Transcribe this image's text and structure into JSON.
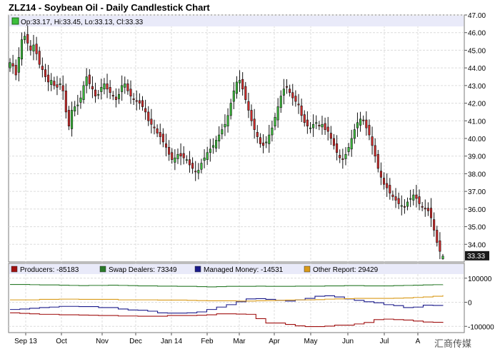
{
  "title": "ZLZ14 - Soybean Oil - Daily Candlestick Chart",
  "ohlc_legend": "Op:33.17, Hi:33.45, Lo:33.13, Cl:33.33",
  "last_price_label": "33.33",
  "watermark": "汇商传媒",
  "colors": {
    "up": "#3bbf3b",
    "down": "#d42a2a",
    "background": "#ffffff",
    "grid": "#dcdcdc",
    "price_box": "#1a1a1a",
    "legend_bar": "#e9eaf9"
  },
  "chart_data": [
    {
      "type": "candlestick",
      "title": "ZLZ14 - Soybean Oil - Daily Candlestick Chart",
      "ylim": [
        33,
        47
      ],
      "yticks": [
        "34.00",
        "35.00",
        "36.00",
        "37.00",
        "38.00",
        "39.00",
        "40.00",
        "41.00",
        "42.00",
        "43.00",
        "44.00",
        "45.00",
        "46.00",
        "47.00"
      ],
      "x_tick_labels": [
        "Sep 13",
        "Oct",
        "Nov",
        "Dec",
        "Jan 14",
        "Feb",
        "Mar",
        "Apr",
        "May",
        "Jun",
        "Jul",
        "A"
      ],
      "grid": true,
      "closes": [
        44.3,
        44.1,
        43.6,
        44.6,
        45.6,
        45.8,
        45.4,
        45.0,
        45.3,
        44.8,
        44.2,
        43.9,
        43.5,
        43.2,
        43.3,
        43.0,
        42.9,
        43.1,
        42.7,
        41.5,
        40.7,
        41.6,
        41.8,
        41.9,
        42.3,
        43.0,
        43.5,
        43.1,
        42.8,
        42.4,
        42.5,
        42.9,
        43.1,
        42.8,
        42.6,
        42.4,
        42.2,
        42.5,
        43.0,
        43.1,
        42.7,
        42.4,
        42.2,
        42.1,
        42.0,
        41.8,
        41.5,
        41.0,
        40.8,
        40.6,
        40.3,
        40.1,
        39.8,
        39.5,
        39.1,
        38.8,
        38.9,
        39.1,
        39.0,
        38.9,
        38.8,
        38.5,
        38.3,
        38.1,
        38.2,
        38.6,
        38.9,
        39.2,
        39.4,
        39.6,
        39.9,
        40.2,
        40.5,
        40.8,
        41.3,
        42.0,
        42.7,
        43.2,
        43.3,
        42.8,
        42.2,
        41.6,
        41.0,
        40.5,
        40.1,
        39.7,
        39.6,
        39.8,
        40.2,
        40.6,
        41.2,
        41.8,
        42.4,
        42.8,
        42.9,
        42.6,
        42.3,
        42.1,
        41.9,
        41.3,
        40.9,
        40.7,
        40.6,
        40.8,
        40.9,
        40.7,
        40.8,
        40.5,
        40.4,
        40.0,
        39.6,
        39.2,
        38.9,
        38.8,
        39.1,
        39.5,
        40.0,
        40.5,
        40.9,
        41.1,
        41.0,
        40.6,
        40.2,
        39.6,
        39.0,
        38.3,
        37.8,
        37.4,
        37.2,
        36.9,
        36.7,
        36.5,
        36.3,
        36.2,
        36.1,
        36.4,
        36.6,
        36.8,
        36.6,
        36.3,
        36.1,
        36.0,
        35.9,
        35.5,
        34.8,
        34.1,
        33.6,
        33.33
      ],
      "last": {
        "open": 33.17,
        "high": 33.45,
        "low": 33.13,
        "close": 33.33
      }
    },
    {
      "type": "line",
      "ylim": [
        -120000,
        120000
      ],
      "yticks": [
        "100000",
        "0",
        "-100000"
      ],
      "series": [
        {
          "name": "Producers: -85183",
          "color": "#a01010",
          "values": [
            -44000,
            -46000,
            -48000,
            -50000,
            -50000,
            -52000,
            -52000,
            -53000,
            -54000,
            -55000,
            -55000,
            -57000,
            -57000,
            -58000,
            -58000,
            -58000,
            -55000,
            -55000,
            -55000,
            -54000,
            -52000,
            -48000,
            -48000,
            -49000,
            -50000,
            -68000,
            -86000,
            -86000,
            -92000,
            -98000,
            -101000,
            -101000,
            -99000,
            -95000,
            -95000,
            -90000,
            -84000,
            -72000,
            -70000,
            -72000,
            -74000,
            -78000,
            -82000,
            -83000,
            -85183
          ]
        },
        {
          "name": "Swap Dealers: 73349",
          "color": "#2a7a2a",
          "values": [
            74000,
            74000,
            73000,
            72000,
            72000,
            71000,
            70000,
            69000,
            70000,
            70000,
            71000,
            70000,
            69000,
            68000,
            68000,
            67000,
            67000,
            66000,
            66000,
            65000,
            64000,
            65000,
            66000,
            66000,
            66000,
            67000,
            66000,
            66000,
            66000,
            67000,
            67000,
            67000,
            68000,
            68000,
            69000,
            69000,
            68000,
            68000,
            68000,
            69000,
            70000,
            71000,
            72000,
            73000,
            73349
          ]
        },
        {
          "name": "Managed Money: -14531",
          "color": "#1a1a8a",
          "values": [
            -30000,
            -28000,
            -25000,
            -22000,
            -20000,
            -17000,
            -17000,
            -18000,
            -18000,
            -22000,
            -22000,
            -28000,
            -32000,
            -33000,
            -37000,
            -44000,
            -45000,
            -45000,
            -44000,
            -40000,
            -30000,
            -20000,
            -10000,
            2000,
            14000,
            15000,
            12000,
            8000,
            5000,
            10000,
            16000,
            25000,
            27000,
            22000,
            14000,
            8000,
            2000,
            -2000,
            -10000,
            -14000,
            -22000,
            -20000,
            -12000,
            -13000,
            -14531
          ]
        },
        {
          "name": "Other Report: 29429",
          "color": "#d99a18",
          "values": [
            10000,
            10000,
            10000,
            12000,
            12000,
            13000,
            13000,
            12000,
            12000,
            12000,
            12000,
            10000,
            10000,
            10000,
            10000,
            9000,
            9000,
            9000,
            8000,
            7000,
            6000,
            6000,
            6000,
            5000,
            5000,
            6000,
            7000,
            8000,
            9000,
            10000,
            10000,
            11000,
            13000,
            14000,
            15000,
            16000,
            16000,
            16000,
            16000,
            17000,
            18000,
            20000,
            22000,
            25000,
            29429
          ]
        }
      ]
    }
  ]
}
